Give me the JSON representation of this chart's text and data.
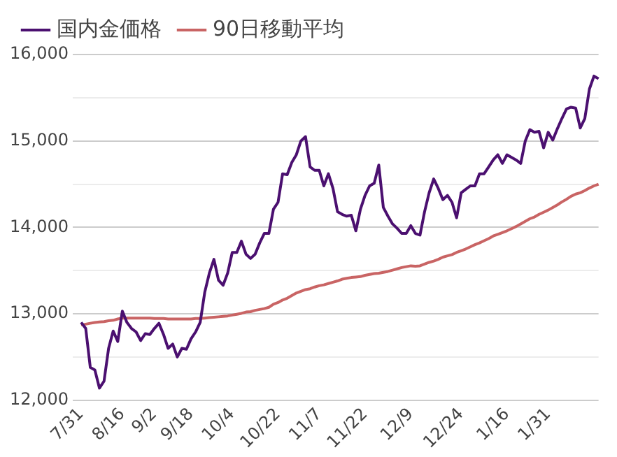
{
  "chart_data": {
    "type": "line",
    "categories": [
      "7/31",
      null,
      null,
      null,
      null,
      null,
      null,
      null,
      null,
      "8/16",
      null,
      null,
      null,
      null,
      null,
      null,
      "9/2",
      null,
      null,
      null,
      null,
      null,
      null,
      null,
      "9/18",
      null,
      null,
      null,
      null,
      null,
      null,
      null,
      null,
      "10/4",
      null,
      null,
      null,
      null,
      null,
      null,
      null,
      null,
      null,
      "10/22",
      null,
      null,
      null,
      null,
      null,
      null,
      null,
      null,
      "11/7",
      null,
      null,
      null,
      null,
      null,
      null,
      null,
      null,
      null,
      "11/22",
      null,
      null,
      null,
      null,
      null,
      null,
      null,
      null,
      null,
      "12/9",
      null,
      null,
      null,
      null,
      null,
      null,
      null,
      null,
      null,
      null,
      "12/24",
      null,
      null,
      null,
      null,
      null,
      null,
      null,
      null,
      null,
      "1/16",
      null,
      null,
      null,
      null,
      null,
      null,
      null,
      null,
      "1/31",
      null,
      null,
      null,
      null,
      null,
      null,
      null,
      null,
      null,
      null,
      null
    ],
    "series": [
      {
        "name": "国内金価格",
        "color": "#4b1070",
        "values": [
          12900,
          12830,
          12380,
          12350,
          12140,
          12220,
          12600,
          12800,
          12680,
          13030,
          12900,
          12830,
          12790,
          12690,
          12770,
          12760,
          12830,
          12890,
          12760,
          12600,
          12650,
          12500,
          12600,
          12590,
          12710,
          12790,
          12900,
          13250,
          13470,
          13630,
          13390,
          13330,
          13470,
          13710,
          13710,
          13840,
          13690,
          13640,
          13690,
          13820,
          13930,
          13930,
          14210,
          14290,
          14620,
          14610,
          14750,
          14840,
          15000,
          15050,
          14700,
          14660,
          14660,
          14480,
          14620,
          14450,
          14180,
          14150,
          14130,
          14140,
          13960,
          14210,
          14370,
          14480,
          14510,
          14720,
          14230,
          14130,
          14040,
          13990,
          13930,
          13930,
          14020,
          13930,
          13910,
          14180,
          14400,
          14560,
          14450,
          14320,
          14370,
          14290,
          14110,
          14400,
          14440,
          14480,
          14480,
          14620,
          14620,
          14700,
          14780,
          14840,
          14740,
          14840,
          14810,
          14780,
          14740,
          15000,
          15130,
          15100,
          15110,
          14920,
          15100,
          15010,
          15140,
          15260,
          15370,
          15390,
          15380,
          15150,
          15260,
          15600,
          15750,
          15720
        ]
      },
      {
        "name": "90日移動平均",
        "color": "#c96464",
        "values": [
          12870,
          12880,
          12890,
          12900,
          12905,
          12910,
          12920,
          12925,
          12940,
          12950,
          12950,
          12950,
          12950,
          12950,
          12950,
          12950,
          12945,
          12945,
          12945,
          12940,
          12940,
          12940,
          12940,
          12940,
          12940,
          12945,
          12945,
          12950,
          12955,
          12960,
          12965,
          12970,
          12975,
          12985,
          12995,
          13005,
          13020,
          13025,
          13040,
          13050,
          13060,
          13075,
          13110,
          13130,
          13160,
          13180,
          13210,
          13240,
          13260,
          13280,
          13290,
          13310,
          13325,
          13335,
          13350,
          13365,
          13380,
          13400,
          13410,
          13420,
          13425,
          13430,
          13445,
          13455,
          13465,
          13470,
          13480,
          13490,
          13505,
          13520,
          13535,
          13545,
          13555,
          13550,
          13555,
          13575,
          13595,
          13610,
          13630,
          13655,
          13670,
          13685,
          13710,
          13730,
          13750,
          13775,
          13800,
          13820,
          13845,
          13870,
          13900,
          13920,
          13940,
          13960,
          13985,
          14010,
          14040,
          14070,
          14100,
          14120,
          14150,
          14175,
          14200,
          14230,
          14260,
          14295,
          14325,
          14360,
          14385,
          14400,
          14425,
          14455,
          14480,
          14500
        ]
      }
    ],
    "ylim": [
      12000,
      16000
    ],
    "yticks": [
      {
        "value": 12000,
        "label": "12,000"
      },
      {
        "value": 12500,
        "label": null
      },
      {
        "value": 13000,
        "label": "13,000"
      },
      {
        "value": 13500,
        "label": null
      },
      {
        "value": 14000,
        "label": "14,000"
      },
      {
        "value": 14500,
        "label": null
      },
      {
        "value": 15000,
        "label": "15,000"
      },
      {
        "value": 15500,
        "label": null
      },
      {
        "value": 16000,
        "label": "16,000"
      }
    ],
    "grid": "y",
    "legend": "top left",
    "marker": "none",
    "line_style": "solid"
  }
}
